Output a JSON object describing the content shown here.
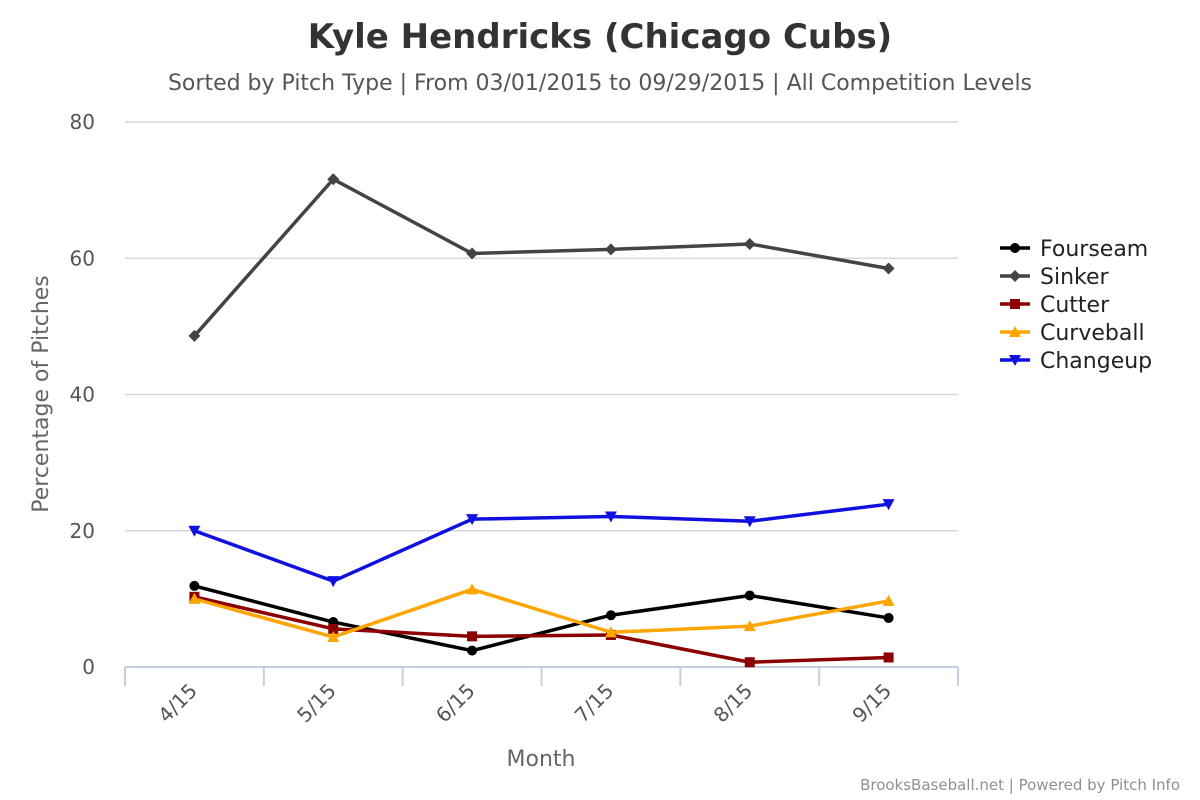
{
  "chart_data": {
    "type": "line",
    "title": "Kyle Hendricks (Chicago Cubs)",
    "subtitle": "Sorted by Pitch Type | From 03/01/2015 to 09/29/2015 | All Competition Levels",
    "xlabel": "Month",
    "ylabel": "Percentage of Pitches",
    "categories": [
      "4/15",
      "5/15",
      "6/15",
      "7/15",
      "8/15",
      "9/15"
    ],
    "ylim": [
      0,
      80
    ],
    "yticks": [
      "0",
      "20",
      "40",
      "60",
      "80"
    ],
    "grid": true,
    "legend_position": "right",
    "series": [
      {
        "name": "Fourseam",
        "color": "#000000",
        "marker": "circle",
        "values": [
          11.9,
          6.6,
          2.4,
          7.6,
          10.5,
          7.2
        ]
      },
      {
        "name": "Sinker",
        "color": "#444444",
        "marker": "diamond",
        "values": [
          48.6,
          71.6,
          60.7,
          61.3,
          62.1,
          58.5
        ]
      },
      {
        "name": "Cutter",
        "color": "#8b0000",
        "marker": "square",
        "values": [
          10.3,
          5.6,
          4.5,
          4.7,
          0.7,
          1.4
        ]
      },
      {
        "name": "Curveball",
        "color": "#ffa500",
        "marker": "triangle",
        "values": [
          10.0,
          4.4,
          11.4,
          5.1,
          6.0,
          9.7
        ]
      },
      {
        "name": "Changeup",
        "color": "#1010e0",
        "marker": "triangle-down",
        "values": [
          20.0,
          12.6,
          21.7,
          22.1,
          21.4,
          23.9
        ]
      }
    ]
  },
  "credit": "BrooksBaseball.net | Powered by Pitch Info"
}
